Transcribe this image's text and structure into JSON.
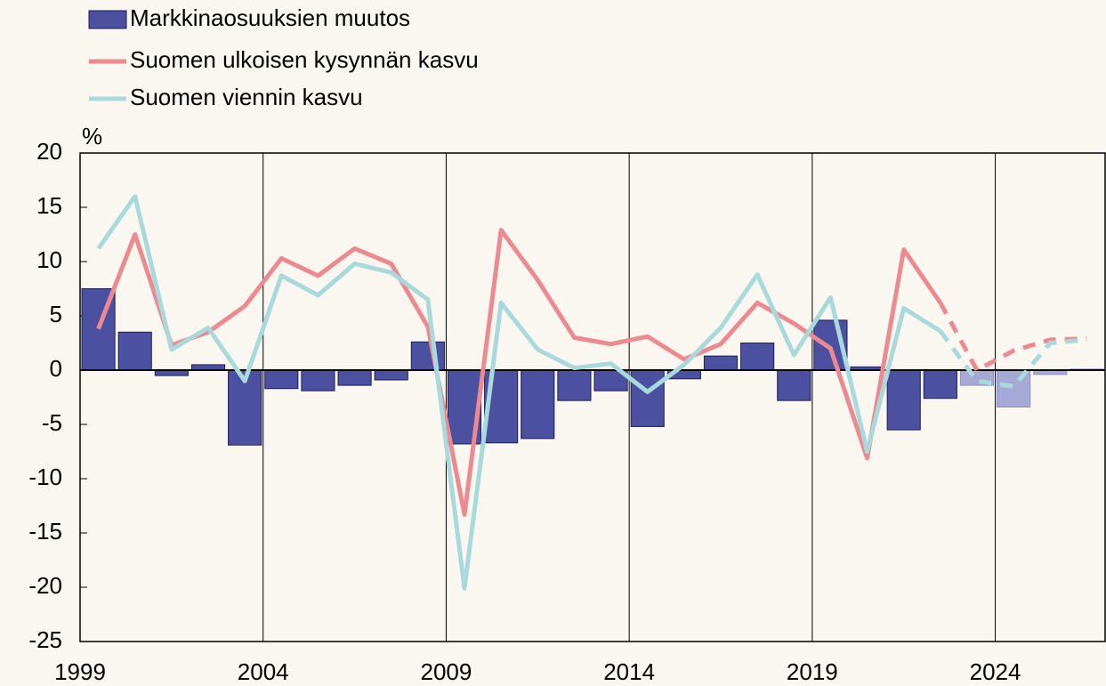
{
  "chart_data": {
    "type": "bar_line",
    "y_unit": "%",
    "x": [
      1999,
      2000,
      2001,
      2002,
      2003,
      2004,
      2005,
      2006,
      2007,
      2008,
      2009,
      2010,
      2011,
      2012,
      2013,
      2014,
      2015,
      2016,
      2017,
      2018,
      2019,
      2020,
      2021,
      2022,
      2023,
      2024,
      2025,
      2026
    ],
    "forecast_from": 2023,
    "series": [
      {
        "name": "Markkinaosuuksien muutos",
        "type": "bar",
        "color": "#4b50a0",
        "forecast_color": "#a6a8d6",
        "values": [
          7.5,
          3.5,
          -0.5,
          0.5,
          -6.9,
          -1.7,
          -1.9,
          -1.4,
          -0.9,
          2.6,
          -6.8,
          -6.7,
          -6.3,
          -2.8,
          -1.9,
          -5.2,
          -0.8,
          1.3,
          2.5,
          -2.8,
          4.6,
          0.3,
          -5.5,
          -2.6,
          -1.4,
          -3.4,
          -0.4,
          0.1
        ]
      },
      {
        "name": "Suomen ulkoisen kysynnän kasvu",
        "type": "line",
        "color": "#ec8a8f",
        "values": [
          3.8,
          12.5,
          2.3,
          3.5,
          5.9,
          10.3,
          8.7,
          11.2,
          9.8,
          4.0,
          -13.3,
          12.9,
          8.3,
          3.0,
          2.4,
          3.1,
          1.0,
          2.4,
          6.2,
          4.3,
          2.0,
          -8.1,
          11.1,
          6.2,
          0.0,
          1.8,
          2.8,
          2.9
        ]
      },
      {
        "name": "Suomen viennin kasvu",
        "type": "line",
        "color": "#a8dadd",
        "values": [
          11.2,
          16.0,
          1.9,
          3.9,
          -1.0,
          8.7,
          6.9,
          9.8,
          9.0,
          6.5,
          -20.1,
          6.2,
          1.9,
          0.2,
          0.6,
          -2.0,
          0.5,
          3.9,
          8.8,
          1.4,
          6.7,
          -7.5,
          5.7,
          3.6,
          -1.0,
          -1.5,
          2.5,
          2.8
        ]
      }
    ],
    "xlim": [
      1999,
      2027
    ],
    "xticks": [
      1999,
      2004,
      2009,
      2014,
      2019,
      2024
    ],
    "ylim": [
      -25,
      20
    ],
    "yticks": [
      -25,
      -20,
      -15,
      -10,
      -5,
      0,
      5,
      10,
      15,
      20
    ],
    "grid": "x"
  }
}
